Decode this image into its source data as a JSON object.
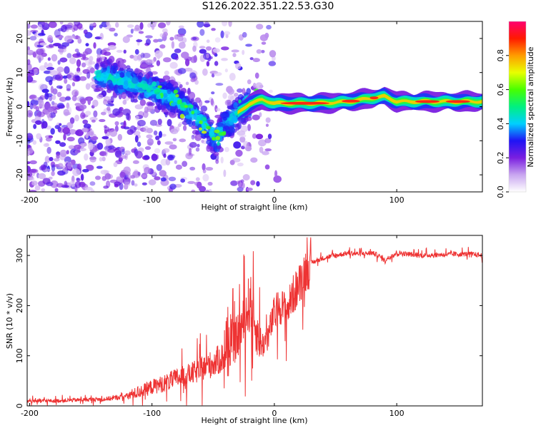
{
  "title": "S126.2022.351.22.53.G30",
  "chart_data": [
    {
      "type": "heatmap",
      "xlabel": "Height of straight line (km)",
      "ylabel": "Frequency (Hz)",
      "xlim": [
        -202,
        170
      ],
      "ylim": [
        -25,
        25
      ],
      "xticks": [
        -200,
        -100,
        0,
        100
      ],
      "yticks": [
        -20,
        -10,
        0,
        10,
        20
      ],
      "colorbar": {
        "label": "Normalized spectral amplitude",
        "range": [
          0,
          1
        ],
        "ticks": [
          "0.0",
          "0.2",
          "0.4",
          "0.6",
          "0.8"
        ],
        "colors": [
          "#ffffff",
          "#c9a6f0",
          "#7a1fe0",
          "#1f14f5",
          "#00d0ff",
          "#00f080",
          "#48ff00",
          "#e8ff00",
          "#ff9c00",
          "#ff1a00",
          "#ff0070"
        ]
      },
      "ridge": {
        "x": [
          -140,
          -120,
          -100,
          -80,
          -60,
          -48,
          -40,
          -30,
          -20,
          -10,
          0,
          20,
          40,
          60,
          80,
          90,
          100,
          120,
          140,
          170
        ],
        "y": [
          9,
          7,
          5,
          2,
          -4,
          -10,
          -5,
          -2,
          1,
          2,
          1,
          1,
          1,
          1.5,
          2.5,
          3,
          1.5,
          1.5,
          1.5,
          1.5
        ]
      }
    },
    {
      "type": "line",
      "xlabel": "Height of straight line (km)",
      "ylabel": "SNR (10 * v/v)",
      "xlim": [
        -202,
        170
      ],
      "ylim": [
        0,
        340
      ],
      "xticks": [
        -200,
        -100,
        0,
        100
      ],
      "yticks": [
        0,
        100,
        200,
        300
      ],
      "series": [
        {
          "color": "#ee3333",
          "x": [
            -200,
            -180,
            -160,
            -140,
            -130,
            -120,
            -110,
            -100,
            -90,
            -80,
            -70,
            -60,
            -50,
            -40,
            -30,
            -25,
            -20,
            -15,
            -10,
            -5,
            0,
            5,
            10,
            15,
            20,
            25,
            30,
            40,
            50,
            60,
            70,
            80,
            85,
            90,
            95,
            100,
            120,
            140,
            160,
            170
          ],
          "values": [
            10,
            10,
            12,
            13,
            16,
            20,
            28,
            38,
            45,
            55,
            62,
            72,
            85,
            100,
            140,
            165,
            210,
            150,
            120,
            140,
            185,
            200,
            190,
            220,
            240,
            270,
            285,
            295,
            300,
            305,
            303,
            305,
            300,
            290,
            298,
            305,
            300,
            302,
            303,
            300
          ]
        }
      ]
    }
  ]
}
